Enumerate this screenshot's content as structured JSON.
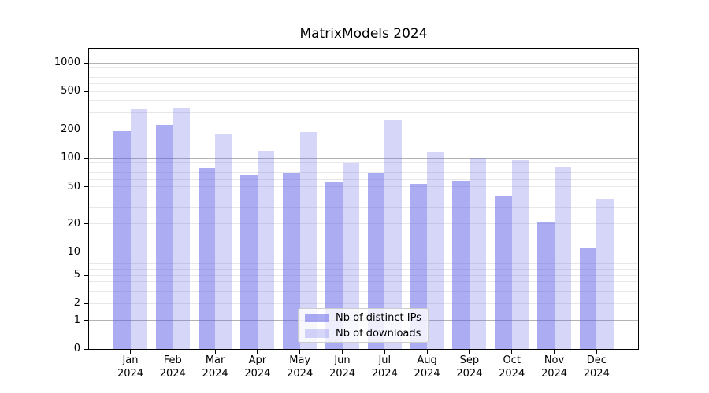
{
  "chart_data": {
    "type": "bar",
    "title": "MatrixModels 2024",
    "categories": [
      "Jan 2024",
      "Feb 2024",
      "Mar 2024",
      "Apr 2024",
      "May 2024",
      "Jun 2024",
      "Jul 2024",
      "Aug 2024",
      "Sep 2024",
      "Oct 2024",
      "Nov 2024",
      "Dec 2024"
    ],
    "series": [
      {
        "name": "Nb of distinct IPs",
        "color": "rgba(90,90,230,0.5)",
        "values": [
          193,
          222,
          78,
          66,
          70,
          57,
          70,
          54,
          58,
          40,
          21,
          11
        ]
      },
      {
        "name": "Nb of downloads",
        "color": "rgba(90,90,230,0.25)",
        "values": [
          328,
          338,
          177,
          118,
          190,
          90,
          250,
          117,
          100,
          97,
          82,
          37
        ]
      }
    ],
    "yscale": "symlog",
    "yticks": [
      0,
      1,
      2,
      5,
      10,
      20,
      50,
      100,
      200,
      500,
      1000
    ],
    "ylim": [
      0,
      1400
    ],
    "xlabel": "",
    "ylabel": "",
    "grid": {
      "enabled": true,
      "major_color": "#b3b3b3",
      "minor_color": "#e8e8e8"
    },
    "legend_position": "lower center"
  }
}
